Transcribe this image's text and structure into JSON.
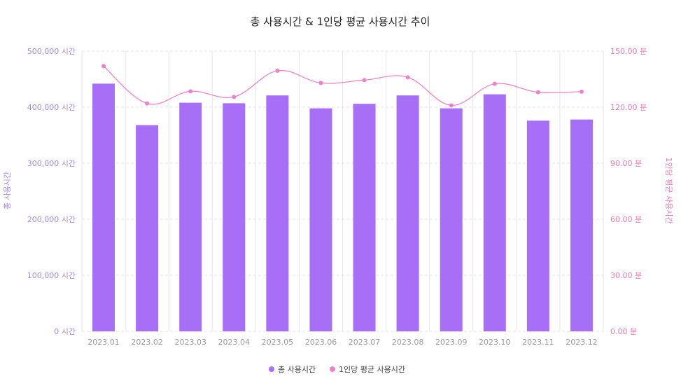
{
  "chart_data": {
    "type": "bar",
    "title": "총 사용시간 & 1인당 평균 사용시간 추이",
    "categories": [
      "2023.01",
      "2023.02",
      "2023.03",
      "2023.04",
      "2023.05",
      "2023.06",
      "2023.07",
      "2023.08",
      "2023.09",
      "2023.10",
      "2023.11",
      "2023.12"
    ],
    "series": [
      {
        "name": "총 사용시간",
        "type": "bar",
        "axis": "left",
        "color": "#a66ff5",
        "values": [
          442000,
          368000,
          408000,
          407000,
          421000,
          398000,
          406000,
          421000,
          398000,
          423000,
          376000,
          378000
        ]
      },
      {
        "name": "1인당 평균 사용시간",
        "type": "line",
        "axis": "right",
        "color": "#ee82c8",
        "values": [
          142.0,
          122.0,
          128.5,
          125.5,
          139.5,
          133.0,
          134.5,
          136.0,
          121.0,
          132.5,
          128.0,
          128.3
        ]
      }
    ],
    "y_left": {
      "label": "총 사용시간",
      "range": [
        0,
        500000
      ],
      "ticks": [
        "0 시간",
        "100,000 시간",
        "200,000 시간",
        "300,000 시간",
        "400,000 시간",
        "500,000 시간"
      ]
    },
    "y_right": {
      "label": "1인당 평균 사용시간",
      "range": [
        0,
        150
      ],
      "ticks": [
        "0.00 분",
        "30.00 분",
        "60.00 분",
        "90.00 분",
        "120.00 분",
        "150.00 분"
      ]
    },
    "grid": true,
    "legend_position": "bottom-center"
  }
}
